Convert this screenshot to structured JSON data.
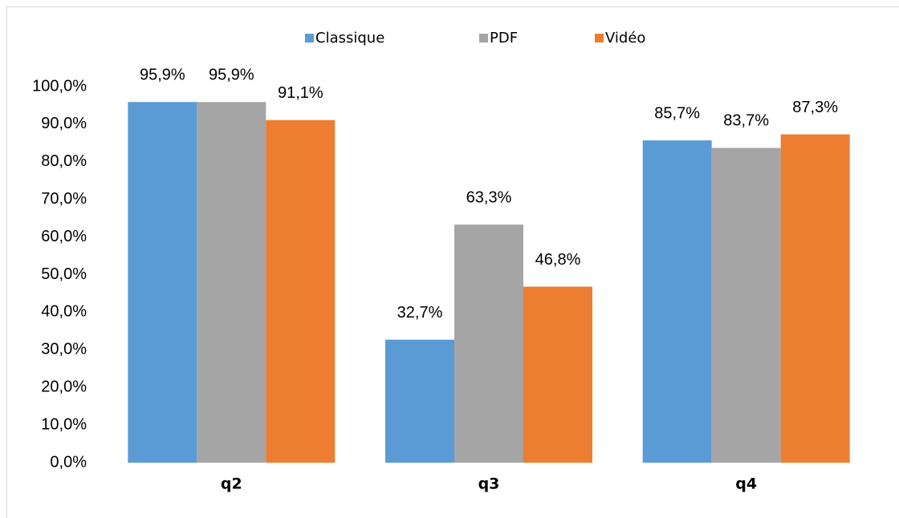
{
  "chart_data": {
    "type": "bar",
    "categories": [
      "q2",
      "q3",
      "q4"
    ],
    "series": [
      {
        "name": "Classique",
        "color": "#5b9bd5",
        "values": [
          95.9,
          32.7,
          85.7
        ],
        "value_labels": [
          "95,9%",
          "32,7%",
          "85,7%"
        ]
      },
      {
        "name": "PDF",
        "color": "#a5a5a5",
        "values": [
          95.9,
          63.3,
          83.7
        ],
        "value_labels": [
          "95,9%",
          "63,3%",
          "83,7%"
        ]
      },
      {
        "name": "Vidéo",
        "color": "#ed7d31",
        "values": [
          91.1,
          46.8,
          87.3
        ],
        "value_labels": [
          "91,1%",
          "46,8%",
          "87,3%"
        ]
      }
    ],
    "ylim": [
      0,
      100
    ],
    "yticks": [
      {
        "value": 0,
        "label": "0,0%"
      },
      {
        "value": 10,
        "label": "10,0%"
      },
      {
        "value": 20,
        "label": "20,0%"
      },
      {
        "value": 30,
        "label": "30,0%"
      },
      {
        "value": 40,
        "label": "40,0%"
      },
      {
        "value": 50,
        "label": "50,0%"
      },
      {
        "value": 60,
        "label": "60,0%"
      },
      {
        "value": 70,
        "label": "70,0%"
      },
      {
        "value": 80,
        "label": "80,0%"
      },
      {
        "value": 90,
        "label": "90,0%"
      },
      {
        "value": 100,
        "label": "100,0%"
      }
    ],
    "grid": false,
    "legend": "top"
  }
}
